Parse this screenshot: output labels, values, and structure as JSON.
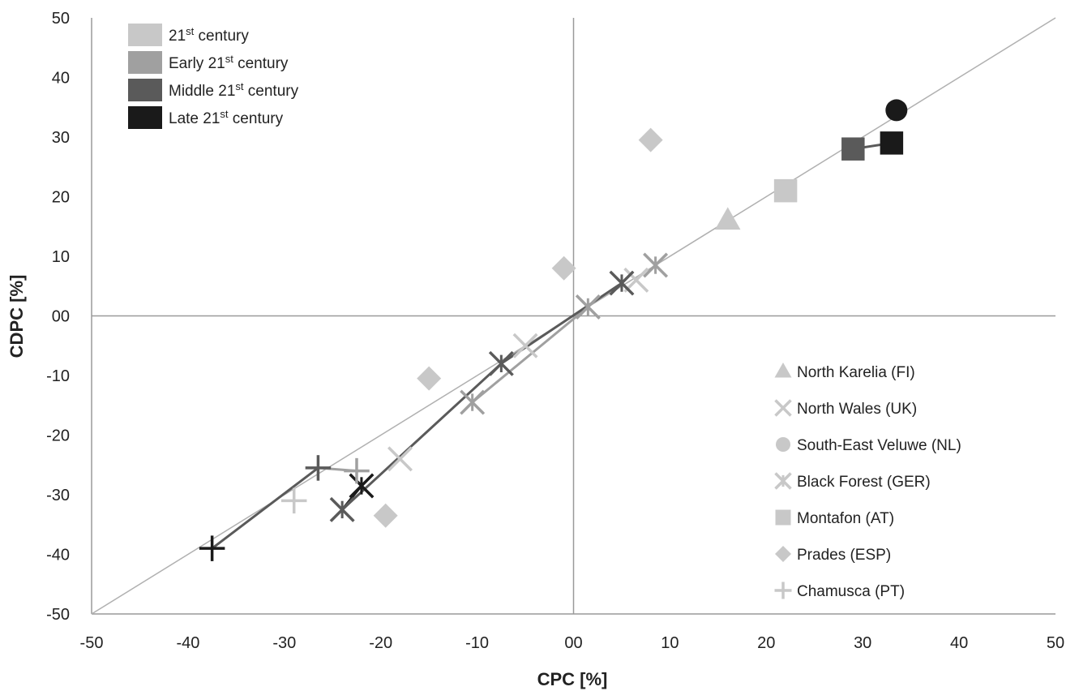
{
  "chart_data": {
    "type": "scatter",
    "xlabel": "CPC [%]",
    "ylabel": "CDPC [%]",
    "xlim": [
      -50,
      50
    ],
    "ylim": [
      -50,
      50
    ],
    "x_ticks": [
      "-50",
      "-40",
      "-30",
      "-20",
      "-10",
      "00",
      "10",
      "20",
      "30",
      "40",
      "50"
    ],
    "y_ticks": [
      "50",
      "40",
      "30",
      "20",
      "10",
      "00",
      "-10",
      "-20",
      "-30",
      "-40",
      "-50"
    ],
    "grid": false,
    "reference_line": "1:1 diagonal",
    "period_legend": [
      {
        "base": "21",
        "sup": "st",
        "rest": " century",
        "color": "#c8c8c8"
      },
      {
        "base": "Early 21",
        "sup": "st",
        "rest": " century",
        "color": "#a0a0a0"
      },
      {
        "base": "Middle 21",
        "sup": "st",
        "rest": " century",
        "color": "#5a5a5a"
      },
      {
        "base": "Late 21",
        "sup": "st",
        "rest": " century",
        "color": "#1a1a1a"
      }
    ],
    "site_legend": [
      {
        "name": "North Karelia (FI)",
        "marker": "triangle"
      },
      {
        "name": "North Wales (UK)",
        "marker": "x"
      },
      {
        "name": "South-East Veluwe (NL)",
        "marker": "circle"
      },
      {
        "name": "Black Forest (GER)",
        "marker": "star"
      },
      {
        "name": "Montafon (AT)",
        "marker": "square"
      },
      {
        "name": "Prades (ESP)",
        "marker": "diamond"
      },
      {
        "name": "Chamusca (PT)",
        "marker": "plus"
      }
    ],
    "points": [
      {
        "site": "North Karelia (FI)",
        "period": "21st century",
        "x": 16,
        "y": 16
      },
      {
        "site": "North Wales (UK)",
        "period": "21st century",
        "x": -18,
        "y": -24
      },
      {
        "site": "North Wales (UK)",
        "period": "21st century",
        "x": 6.5,
        "y": 6
      },
      {
        "site": "North Wales (UK)",
        "period": "21st century",
        "x": -5,
        "y": -5
      },
      {
        "site": "South-East Veluwe (NL)",
        "period": "Late 21st century",
        "x": 33.5,
        "y": 34.5
      },
      {
        "site": "Black Forest (GER)",
        "period": "Early 21st century",
        "x": 8.5,
        "y": 8.5
      },
      {
        "site": "Black Forest (GER)",
        "period": "Early 21st century",
        "x": 1.5,
        "y": 1.5
      },
      {
        "site": "Black Forest (GER)",
        "period": "Early 21st century",
        "x": -10.5,
        "y": -14.5
      },
      {
        "site": "Black Forest (GER)",
        "period": "Middle 21st century",
        "x": 5,
        "y": 5.5
      },
      {
        "site": "Black Forest (GER)",
        "period": "Middle 21st century",
        "x": -7.5,
        "y": -8
      },
      {
        "site": "Black Forest (GER)",
        "period": "Middle 21st century",
        "x": -24,
        "y": -32.5
      },
      {
        "site": "Black Forest (GER)",
        "period": "Late 21st century",
        "x": -22,
        "y": -28.5
      },
      {
        "site": "Montafon (AT)",
        "period": "21st century",
        "x": 22,
        "y": 21
      },
      {
        "site": "Montafon (AT)",
        "period": "Middle 21st century",
        "x": 29,
        "y": 28
      },
      {
        "site": "Montafon (AT)",
        "period": "Late 21st century",
        "x": 33,
        "y": 29
      },
      {
        "site": "Prades (ESP)",
        "period": "21st century",
        "x": 8,
        "y": 29.5
      },
      {
        "site": "Prades (ESP)",
        "period": "21st century",
        "x": -1,
        "y": 8
      },
      {
        "site": "Prades (ESP)",
        "period": "21st century",
        "x": -15,
        "y": -10.5
      },
      {
        "site": "Prades (ESP)",
        "period": "21st century",
        "x": -19.5,
        "y": -33.5
      },
      {
        "site": "Chamusca (PT)",
        "period": "21st century",
        "x": -29,
        "y": -31
      },
      {
        "site": "Chamusca (PT)",
        "period": "Early 21st century",
        "x": -22.5,
        "y": -26
      },
      {
        "site": "Chamusca (PT)",
        "period": "Middle 21st century",
        "x": -26.5,
        "y": -25.5
      },
      {
        "site": "Chamusca (PT)",
        "period": "Late 21st century",
        "x": -37.5,
        "y": -39
      }
    ],
    "connectors": [
      {
        "color": "#a0a0a0",
        "points": [
          [
            -22.5,
            -26
          ],
          [
            -26.5,
            -25.5
          ]
        ]
      },
      {
        "color": "#5a5a5a",
        "points": [
          [
            -26.5,
            -25.5
          ],
          [
            -37.5,
            -39
          ]
        ]
      },
      {
        "color": "#5a5a5a",
        "points": [
          [
            29,
            28
          ],
          [
            33,
            29
          ]
        ]
      },
      {
        "color": "#a0a0a0",
        "points": [
          [
            1.5,
            1.5
          ],
          [
            -10.5,
            -14.5
          ]
        ]
      },
      {
        "color": "#5a5a5a",
        "points": [
          [
            5,
            5.5
          ],
          [
            -7.5,
            -8
          ],
          [
            -24,
            -32.5
          ]
        ]
      },
      {
        "color": "#1a1a1a",
        "points": [
          [
            -22,
            -28.5
          ],
          [
            -24,
            -32.5
          ]
        ]
      }
    ]
  }
}
